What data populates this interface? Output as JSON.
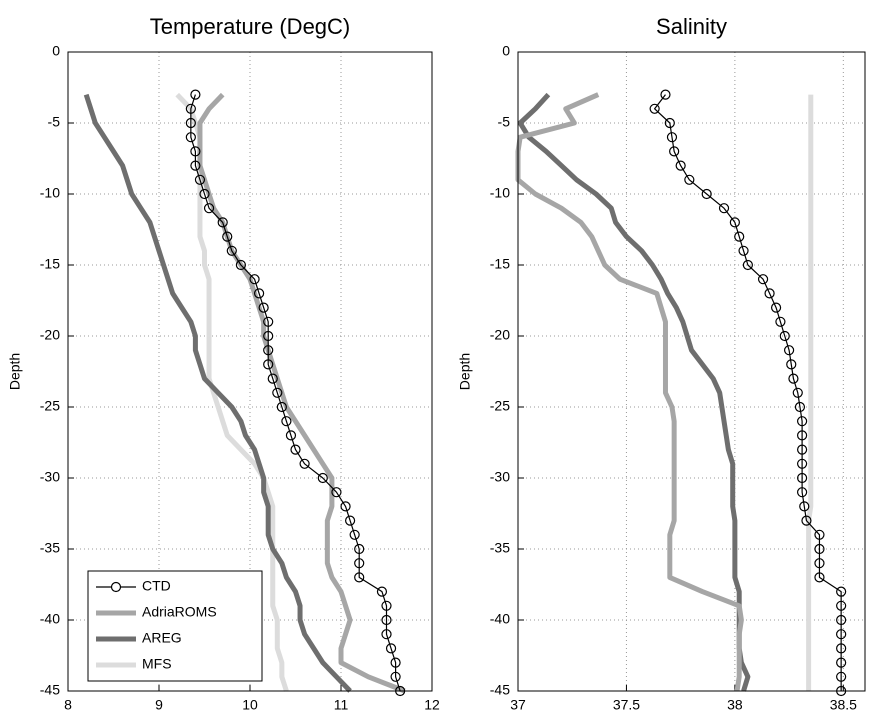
{
  "chart_data": [
    {
      "type": "line",
      "title": "Temperature (DegC)",
      "ylabel": "Depth",
      "grid": true,
      "legend": "lower left",
      "xlim": [
        8,
        12
      ],
      "xticks": [
        8,
        9,
        10,
        11,
        12
      ],
      "ylim": [
        -45,
        0
      ],
      "yticks": [
        0,
        -5,
        -10,
        -15,
        -20,
        -25,
        -30,
        -35,
        -40,
        -45
      ],
      "y": [
        -3,
        -4,
        -5,
        -6,
        -7,
        -8,
        -9,
        -10,
        -11,
        -12,
        -13,
        -14,
        -15,
        -16,
        -17,
        -18,
        -19,
        -20,
        -21,
        -22,
        -23,
        -24,
        -25,
        -26,
        -27,
        -28,
        -29,
        -30,
        -31,
        -32,
        -33,
        -34,
        -35,
        -36,
        -37,
        -38,
        -39,
        -40,
        -41,
        -42,
        -43,
        -44,
        -45
      ],
      "series": [
        {
          "name": "CTD",
          "color": "#000000",
          "marker": "circle",
          "values": [
            9.4,
            9.35,
            9.35,
            9.35,
            9.4,
            9.4,
            9.45,
            9.5,
            9.55,
            9.7,
            9.75,
            9.8,
            9.9,
            10.05,
            10.1,
            10.15,
            10.2,
            10.2,
            10.2,
            10.2,
            10.25,
            10.3,
            10.35,
            10.4,
            10.45,
            10.5,
            10.6,
            10.8,
            10.95,
            11.05,
            11.1,
            11.15,
            11.2,
            11.2,
            11.2,
            11.45,
            11.5,
            11.5,
            11.5,
            11.55,
            11.6,
            11.6,
            11.65
          ]
        },
        {
          "name": "AdriaROMS",
          "color": "#a6a6a6",
          "values": [
            9.7,
            9.55,
            9.45,
            9.45,
            9.45,
            9.45,
            9.5,
            9.55,
            9.6,
            9.7,
            9.75,
            9.8,
            9.9,
            10.0,
            10.05,
            10.1,
            10.15,
            10.15,
            10.2,
            10.25,
            10.3,
            10.35,
            10.4,
            10.5,
            10.6,
            10.7,
            10.8,
            10.9,
            10.9,
            10.9,
            10.85,
            10.85,
            10.85,
            10.85,
            10.9,
            11.0,
            11.05,
            11.1,
            11.05,
            11.0,
            11.0,
            11.3,
            11.7
          ]
        },
        {
          "name": "AREG",
          "color": "#6e6e6e",
          "values": [
            8.2,
            8.25,
            8.3,
            8.4,
            8.5,
            8.6,
            8.65,
            8.7,
            8.8,
            8.9,
            8.95,
            9.0,
            9.05,
            9.1,
            9.15,
            9.25,
            9.35,
            9.4,
            9.4,
            9.45,
            9.5,
            9.65,
            9.8,
            9.9,
            9.95,
            10.05,
            10.1,
            10.15,
            10.15,
            10.2,
            10.2,
            10.2,
            10.25,
            10.35,
            10.4,
            10.5,
            10.55,
            10.55,
            10.6,
            10.7,
            10.8,
            10.95,
            11.1
          ]
        },
        {
          "name": "MFS",
          "color": "#dcdcdc",
          "values": [
            9.2,
            9.35,
            9.4,
            9.45,
            9.45,
            9.45,
            9.45,
            9.45,
            9.45,
            9.45,
            9.45,
            9.5,
            9.5,
            9.55,
            9.55,
            9.55,
            9.55,
            9.55,
            9.55,
            9.55,
            9.55,
            9.6,
            9.65,
            9.7,
            9.75,
            9.9,
            10.05,
            10.15,
            10.2,
            10.25,
            10.25,
            10.25,
            10.25,
            10.25,
            10.25,
            10.25,
            10.25,
            10.3,
            10.3,
            10.3,
            10.35,
            10.35,
            10.4
          ]
        }
      ]
    },
    {
      "type": "line",
      "title": "Salinity",
      "ylabel": "Depth",
      "grid": true,
      "xlim": [
        37,
        38.6
      ],
      "xticks": [
        37,
        37.5,
        38,
        38.5
      ],
      "ylim": [
        -45,
        0
      ],
      "yticks": [
        0,
        -5,
        -10,
        -15,
        -20,
        -25,
        -30,
        -35,
        -40,
        -45
      ],
      "y": [
        -3,
        -4,
        -5,
        -6,
        -7,
        -8,
        -9,
        -10,
        -11,
        -12,
        -13,
        -14,
        -15,
        -16,
        -17,
        -18,
        -19,
        -20,
        -21,
        -22,
        -23,
        -24,
        -25,
        -26,
        -27,
        -28,
        -29,
        -30,
        -31,
        -32,
        -33,
        -34,
        -35,
        -36,
        -37,
        -38,
        -39,
        -40,
        -41,
        -42,
        -43,
        -44,
        -45
      ],
      "series": [
        {
          "name": "CTD",
          "color": "#000000",
          "marker": "circle",
          "values": [
            37.68,
            37.63,
            37.7,
            37.71,
            37.72,
            37.75,
            37.79,
            37.87,
            37.95,
            38.0,
            38.02,
            38.04,
            38.06,
            38.13,
            38.16,
            38.19,
            38.21,
            38.23,
            38.25,
            38.26,
            38.27,
            38.29,
            38.3,
            38.31,
            38.31,
            38.31,
            38.31,
            38.31,
            38.31,
            38.32,
            38.33,
            38.39,
            38.39,
            38.39,
            38.39,
            38.49,
            38.49,
            38.49,
            38.49,
            38.49,
            38.49,
            38.49,
            38.49
          ]
        },
        {
          "name": "AdriaROMS",
          "color": "#a6a6a6",
          "values": [
            37.37,
            37.22,
            37.26,
            37.01,
            37.0,
            37.0,
            37.0,
            37.08,
            37.2,
            37.29,
            37.34,
            37.37,
            37.4,
            37.47,
            37.64,
            37.66,
            37.68,
            37.68,
            37.68,
            37.68,
            37.68,
            37.68,
            37.71,
            37.72,
            37.72,
            37.72,
            37.72,
            37.72,
            37.72,
            37.72,
            37.72,
            37.7,
            37.7,
            37.7,
            37.7,
            37.85,
            38.02,
            38.03,
            38.02,
            38.02,
            38.02,
            38.02,
            38.01
          ]
        },
        {
          "name": "AREG",
          "color": "#6e6e6e",
          "values": [
            37.14,
            37.08,
            37.01,
            37.05,
            37.13,
            37.2,
            37.27,
            37.36,
            37.43,
            37.45,
            37.5,
            37.57,
            37.62,
            37.66,
            37.69,
            37.73,
            37.76,
            37.78,
            37.8,
            37.85,
            37.9,
            37.93,
            37.94,
            37.95,
            37.96,
            37.97,
            37.99,
            37.99,
            37.99,
            37.99,
            38.0,
            38.0,
            38.0,
            38.0,
            38.0,
            38.02,
            38.02,
            38.02,
            38.02,
            38.02,
            38.03,
            38.06,
            38.04
          ]
        },
        {
          "name": "MFS",
          "color": "#dcdcdc",
          "values": [
            38.35,
            38.35,
            38.35,
            38.35,
            38.35,
            38.35,
            38.35,
            38.35,
            38.35,
            38.35,
            38.35,
            38.35,
            38.35,
            38.35,
            38.35,
            38.35,
            38.35,
            38.35,
            38.35,
            38.35,
            38.35,
            38.35,
            38.35,
            38.35,
            38.35,
            38.35,
            38.35,
            38.35,
            38.35,
            38.35,
            38.34,
            38.34,
            38.34,
            38.34,
            38.34,
            38.34,
            38.34,
            38.34,
            38.34,
            38.34,
            38.34,
            38.34,
            38.34
          ]
        }
      ]
    }
  ]
}
